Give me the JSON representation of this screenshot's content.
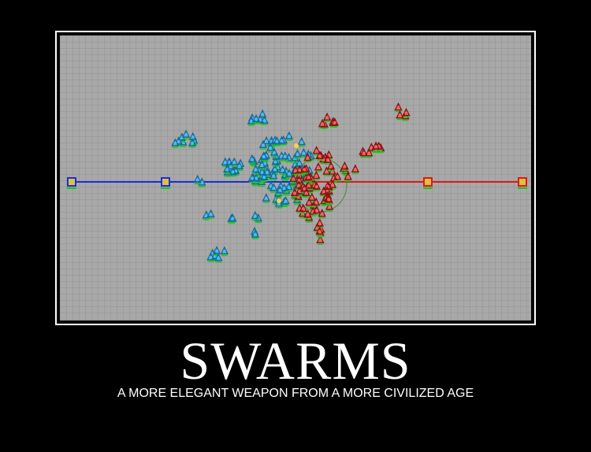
{
  "poster": {
    "title": "SWARMS",
    "caption": "A MORE ELEGANT WEAPON FROM A MORE CIVILIZED AGE"
  },
  "scene": {
    "background_color": "#a8a8a8",
    "blue_team_color": "#1e2dd8",
    "red_team_color": "#e01818",
    "health_bar_color": "#18c818"
  }
}
